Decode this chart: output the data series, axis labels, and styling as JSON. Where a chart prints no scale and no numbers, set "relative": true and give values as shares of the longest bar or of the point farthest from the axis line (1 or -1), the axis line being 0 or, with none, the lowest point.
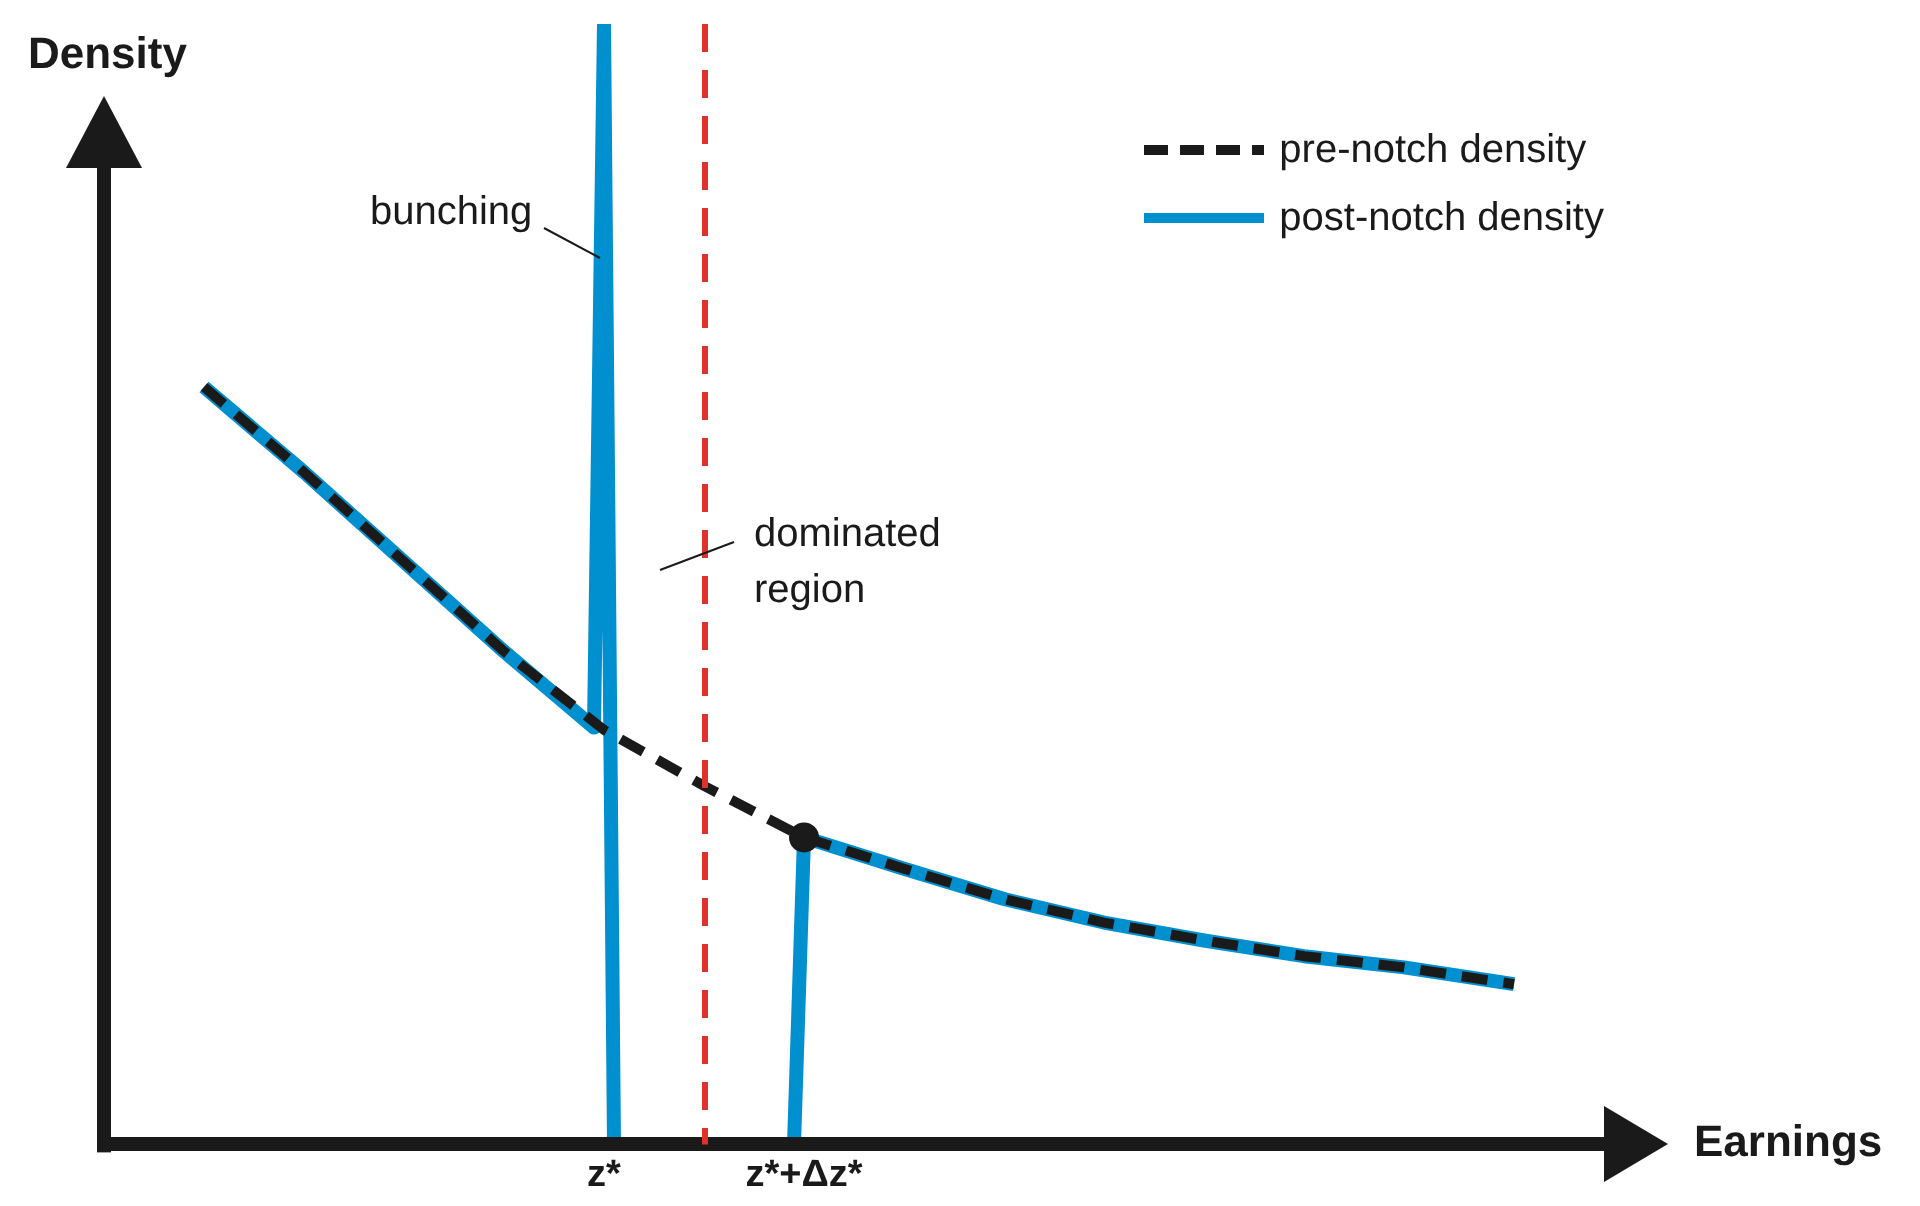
{
  "chart_data": {
    "type": "line",
    "relative": true,
    "xlabel": "Earnings",
    "ylabel": "Density",
    "legend": "top right",
    "tick_labels": "x",
    "marker": "none",
    "categories": [
      null,
      null,
      null,
      null,
      null,
      null,
      null,
      null,
      null,
      null,
      null,
      null,
      null,
      null,
      null,
      null,
      null,
      null,
      null,
      null,
      null,
      null,
      null,
      null,
      null,
      null,
      null,
      null,
      null,
      null,
      null,
      null,
      null,
      null,
      null,
      null,
      null,
      null,
      null,
      null,
      null,
      null,
      null,
      null,
      null,
      null,
      null,
      null,
      null,
      null,
      "z*",
      null,
      null,
      null,
      null,
      null,
      null,
      null,
      null,
      null,
      null,
      null,
      null,
      null,
      null,
      null,
      null,
      null,
      null,
      null,
      "z*+Δz*",
      null,
      null,
      null,
      null,
      null,
      null,
      null,
      null,
      null,
      null,
      null,
      null,
      null,
      null,
      null,
      null,
      null,
      null,
      null,
      null,
      null,
      null,
      null,
      null,
      null,
      null,
      null,
      null,
      null,
      null,
      null,
      null,
      null,
      null,
      null,
      null,
      null,
      null,
      null,
      null,
      null,
      null,
      null,
      null,
      null,
      null,
      null,
      null,
      null,
      null,
      null,
      null,
      null,
      null,
      null,
      null,
      null,
      null,
      null,
      null,
      null,
      null,
      null,
      null,
      null,
      null,
      null,
      null,
      null,
      null,
      null,
      null,
      null,
      null,
      null,
      null,
      null,
      null,
      null,
      null
    ],
    "series": [
      {
        "name": "pre-notch density",
        "color": "#1a1a1a",
        "line_style": "dashed",
        "values": [
          null,
          null,
          null,
          null,
          null,
          null,
          null,
          null,
          null,
          null,
          0.676,
          null,
          null,
          null,
          null,
          null,
          null,
          null,
          null,
          null,
          0.6,
          null,
          null,
          null,
          null,
          null,
          null,
          null,
          null,
          null,
          0.52,
          null,
          null,
          null,
          null,
          null,
          null,
          null,
          null,
          null,
          0.44,
          null,
          null,
          null,
          null,
          null,
          null,
          null,
          null,
          null,
          0.37,
          null,
          null,
          null,
          null,
          null,
          null,
          null,
          null,
          null,
          0.32,
          null,
          null,
          null,
          null,
          null,
          null,
          null,
          null,
          null,
          0.274,
          null,
          null,
          null,
          null,
          null,
          null,
          null,
          null,
          null,
          0.246,
          null,
          null,
          null,
          null,
          null,
          null,
          null,
          null,
          null,
          0.219,
          null,
          null,
          null,
          null,
          null,
          null,
          null,
          null,
          null,
          0.198,
          null,
          null,
          null,
          null,
          null,
          null,
          null,
          null,
          null,
          0.182,
          null,
          null,
          null,
          null,
          null,
          null,
          null,
          null,
          null,
          0.168,
          null,
          null,
          null,
          null,
          null,
          null,
          null,
          null,
          null,
          0.158,
          null,
          null,
          null,
          null,
          null,
          null,
          null,
          null,
          null,
          null,
          0.143,
          null,
          null,
          null,
          null,
          null,
          null,
          null,
          null,
          null
        ]
      },
      {
        "name": "post-notch density",
        "color": "#0090cf",
        "line_style": "solid",
        "values": [
          null,
          null,
          null,
          null,
          null,
          null,
          null,
          null,
          null,
          null,
          0.676,
          null,
          null,
          null,
          null,
          null,
          null,
          null,
          null,
          null,
          0.6,
          null,
          null,
          null,
          null,
          null,
          null,
          null,
          null,
          null,
          0.52,
          null,
          null,
          null,
          null,
          null,
          null,
          null,
          null,
          null,
          0.44,
          null,
          null,
          null,
          null,
          null,
          null,
          null,
          null,
          0.372,
          1,
          0,
          null,
          null,
          null,
          null,
          null,
          null,
          null,
          null,
          null,
          null,
          null,
          null,
          null,
          null,
          null,
          null,
          null,
          0,
          0.274,
          null,
          null,
          null,
          null,
          null,
          null,
          null,
          null,
          null,
          0.246,
          null,
          null,
          null,
          null,
          null,
          null,
          null,
          null,
          null,
          0.219,
          null,
          null,
          null,
          null,
          null,
          null,
          null,
          null,
          null,
          0.198,
          null,
          null,
          null,
          null,
          null,
          null,
          null,
          null,
          null,
          0.182,
          null,
          null,
          null,
          null,
          null,
          null,
          null,
          null,
          null,
          0.168,
          null,
          null,
          null,
          null,
          null,
          null,
          null,
          null,
          null,
          0.158,
          null,
          null,
          null,
          null,
          null,
          null,
          null,
          null,
          null,
          null,
          0.143,
          null,
          null,
          null,
          null,
          null,
          null,
          null,
          null,
          null
        ]
      },
      {
        "type": "scatter",
        "color": "#1a1a1a",
        "marker": "circle",
        "values": [
          null,
          null,
          null,
          null,
          null,
          null,
          null,
          null,
          null,
          null,
          null,
          null,
          null,
          null,
          null,
          null,
          null,
          null,
          null,
          null,
          null,
          null,
          null,
          null,
          null,
          null,
          null,
          null,
          null,
          null,
          null,
          null,
          null,
          null,
          null,
          null,
          null,
          null,
          null,
          null,
          null,
          null,
          null,
          null,
          null,
          null,
          null,
          null,
          null,
          null,
          null,
          null,
          null,
          null,
          null,
          null,
          null,
          null,
          null,
          null,
          null,
          null,
          null,
          null,
          null,
          null,
          null,
          null,
          null,
          null,
          0.274,
          null,
          null,
          null,
          null,
          null,
          null,
          null,
          null,
          null,
          null,
          null,
          null,
          null,
          null,
          null,
          null,
          null,
          null,
          null,
          null,
          null,
          null,
          null,
          null,
          null,
          null,
          null,
          null,
          null,
          null,
          null,
          null,
          null,
          null,
          null,
          null,
          null,
          null,
          null,
          null,
          null,
          null,
          null,
          null,
          null,
          null,
          null,
          null,
          null,
          null,
          null,
          null,
          null,
          null,
          null,
          null,
          null,
          null,
          null,
          null,
          null,
          null,
          null,
          null,
          null,
          null,
          null,
          null,
          null,
          null,
          null,
          null,
          null,
          null,
          null,
          null,
          null,
          null,
          null,
          null
        ]
      }
    ],
    "annotations": [
      {
        "text": "bunching",
        "x": "z*",
        "y": 0.79
      },
      "dominated region"
    ]
  }
}
